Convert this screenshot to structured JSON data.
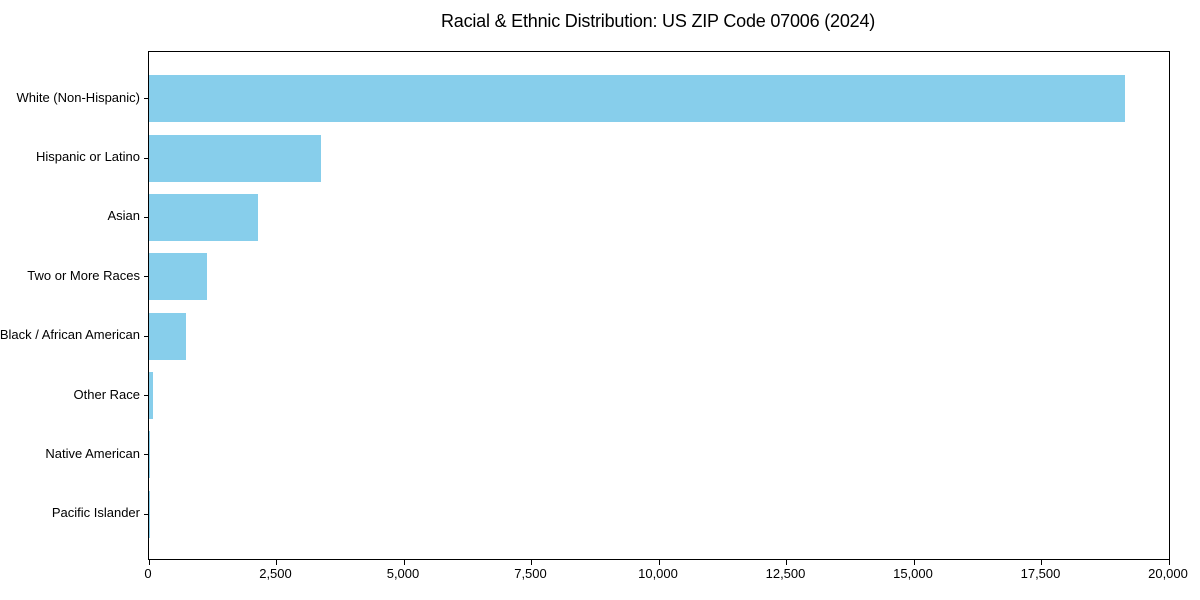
{
  "figure": {
    "background": "#ffffff",
    "spine_color": "#000000",
    "text_color": "#000000"
  },
  "chart_data": {
    "type": "bar",
    "orientation": "horizontal",
    "title": "Racial & Ethnic Distribution: US ZIP Code 07006 (2024)",
    "categories": [
      "White (Non-Hispanic)",
      "Hispanic or Latino",
      "Asian",
      "Two or More Races",
      "Black / African American",
      "Other Race",
      "Native American",
      "Pacific Islander"
    ],
    "values": [
      19140,
      3370,
      2140,
      1140,
      725,
      80,
      10,
      3
    ],
    "xlabel": "",
    "ylabel": "",
    "xlim": [
      0,
      20000
    ],
    "xticks": [
      0,
      2500,
      5000,
      7500,
      10000,
      12500,
      15000,
      17500,
      20000
    ],
    "xtick_labels": [
      "0",
      "2,500",
      "5,000",
      "7,500",
      "10,000",
      "12,500",
      "15,000",
      "17,500",
      "20,000"
    ],
    "bar_color": "#87CEEB",
    "grid": false,
    "legend": null
  }
}
